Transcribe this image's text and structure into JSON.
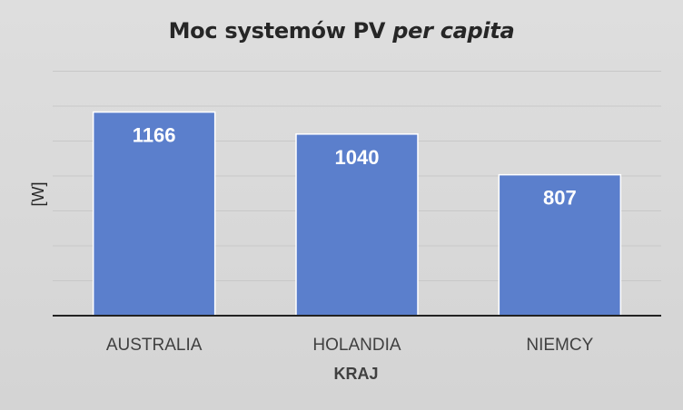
{
  "chart_data": {
    "type": "bar",
    "title_main": "Moc systemów PV",
    "title_italic": "per capita",
    "xlabel": "KRAJ",
    "ylabel": "[W]",
    "categories": [
      "AUSTRALIA",
      "HOLANDIA",
      "NIEMCY"
    ],
    "values": [
      1166,
      1040,
      807
    ],
    "ylim": [
      0,
      1200
    ],
    "grid": true,
    "bar_color": "#5b7fcc",
    "grid_color": "#c8c8c8",
    "axis_color": "#222222"
  }
}
